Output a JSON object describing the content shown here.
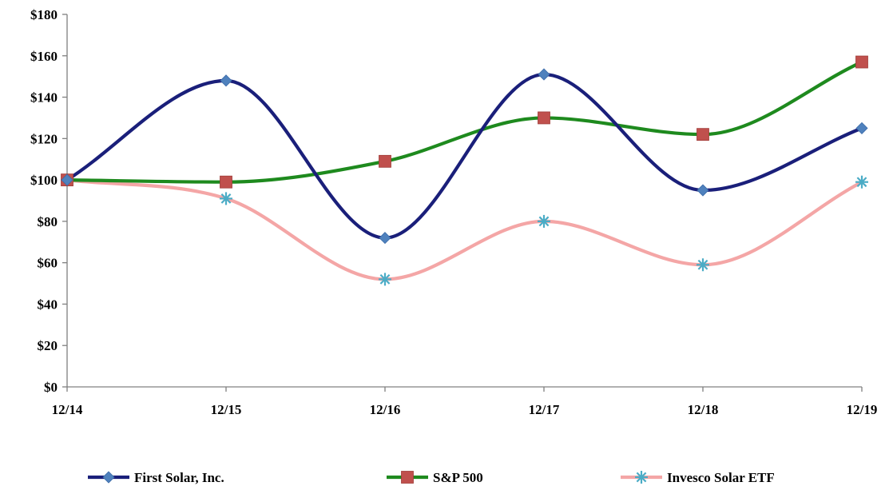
{
  "chart_data": {
    "type": "line",
    "categories": [
      "12/14",
      "12/15",
      "12/16",
      "12/17",
      "12/18",
      "12/19"
    ],
    "y_ticks": [
      "$0",
      "$20",
      "$40",
      "$60",
      "$80",
      "$100",
      "$120",
      "$140",
      "$160",
      "$180"
    ],
    "ylim": [
      0,
      180
    ],
    "y_step": 20,
    "grid": false,
    "legend_position": "bottom",
    "series": [
      {
        "name": "First Solar, Inc.",
        "values": [
          100,
          148,
          72,
          151,
          95,
          125
        ],
        "color": "#1a1f7a",
        "marker": "diamond",
        "marker_color": "#4f81bd"
      },
      {
        "name": "S&P 500",
        "values": [
          100,
          99,
          109,
          130,
          122,
          157
        ],
        "color": "#1e8a1e",
        "marker": "square",
        "marker_color": "#c0504d"
      },
      {
        "name": "Invesco Solar ETF",
        "values": [
          100,
          91,
          52,
          80,
          59,
          99
        ],
        "color": "#f4a6a6",
        "marker": "asterisk",
        "marker_color": "#4bacc6"
      }
    ]
  }
}
